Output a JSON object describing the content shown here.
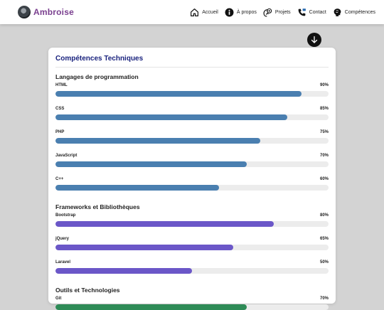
{
  "brand": {
    "name": "Ambroise"
  },
  "nav": [
    {
      "label": "Accueil",
      "icon": "home-icon"
    },
    {
      "label": "À propos",
      "icon": "info-icon"
    },
    {
      "label": "Projets",
      "icon": "projects-icon"
    },
    {
      "label": "Contact",
      "icon": "phone-icon"
    },
    {
      "label": "Compétences",
      "icon": "brain-icon"
    }
  ],
  "scroll_button": {
    "icon": "arrow-down-icon"
  },
  "card": {
    "title": "Compétences Techniques",
    "categories": [
      {
        "title": "Langages de programmation",
        "color": "#4a7fb0",
        "skills": [
          {
            "name": "HTML",
            "percent_label": "90%",
            "level": 0.9
          },
          {
            "name": "CSS",
            "percent_label": "85%",
            "level": 0.85
          },
          {
            "name": "PHP",
            "percent_label": "75%",
            "level": 0.75
          },
          {
            "name": "JavaScript",
            "percent_label": "70%",
            "level": 0.7
          },
          {
            "name": "C++",
            "percent_label": "60%",
            "level": 0.6
          }
        ]
      },
      {
        "title": "Frameworks et Bibliothèques",
        "color": "#6b57c8",
        "skills": [
          {
            "name": "Bootstrap",
            "percent_label": "80%",
            "level": 0.8
          },
          {
            "name": "jQuery",
            "percent_label": "65%",
            "level": 0.65
          },
          {
            "name": "Laravel",
            "percent_label": "50%",
            "level": 0.5
          }
        ]
      },
      {
        "title": "Outils et Technologies",
        "color": "#2e8b57",
        "skills": [
          {
            "name": "Git",
            "percent_label": "70%",
            "level": 0.7
          }
        ]
      }
    ]
  }
}
